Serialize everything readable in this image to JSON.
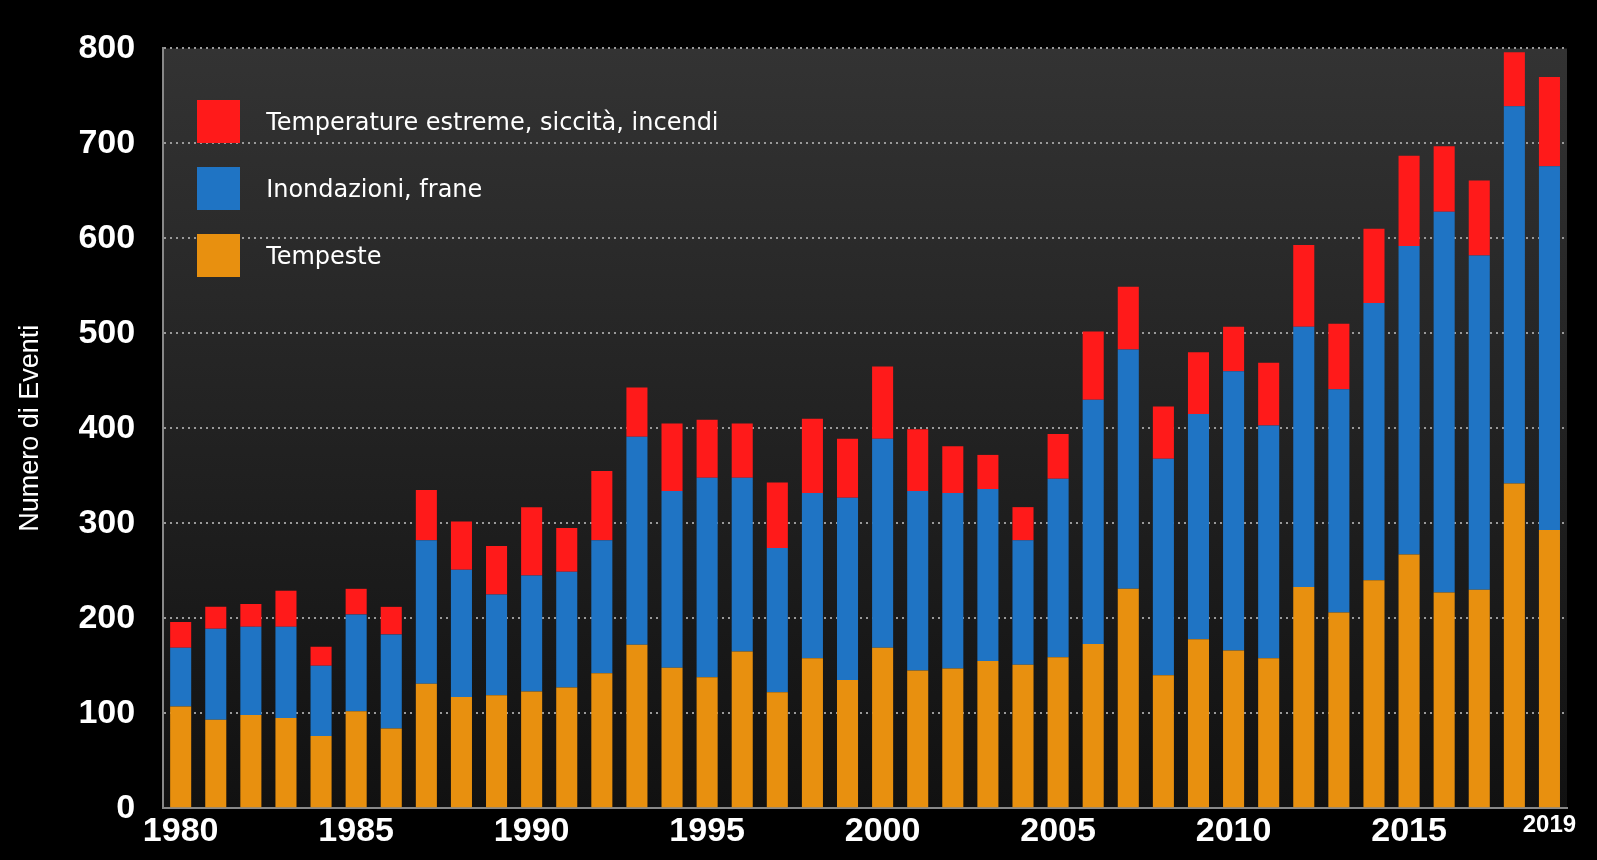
{
  "chart_data": {
    "type": "bar",
    "stacked": true,
    "ylabel": "Numero di Eventi",
    "categories": [
      "1980",
      null,
      null,
      null,
      null,
      "1985",
      null,
      null,
      null,
      null,
      "1990",
      null,
      null,
      null,
      null,
      "1995",
      null,
      null,
      null,
      null,
      "2000",
      null,
      null,
      null,
      null,
      "2005",
      null,
      null,
      null,
      null,
      "2010",
      null,
      null,
      null,
      null,
      "2015",
      null,
      null,
      null,
      "2019"
    ],
    "series": [
      {
        "name": "Tempeste",
        "color": "#e8900f",
        "values": [
          107,
          93,
          98,
          95,
          76,
          102,
          84,
          131,
          117,
          119,
          123,
          127,
          142,
          172,
          148,
          138,
          165,
          122,
          158,
          135,
          169,
          145,
          147,
          155,
          151,
          159,
          173,
          231,
          140,
          178,
          166,
          158,
          233,
          206,
          240,
          267,
          227,
          230,
          342,
          293
        ]
      },
      {
        "name": "Inondazioni, frane",
        "color": "#1f74c4",
        "values": [
          62,
          96,
          93,
          96,
          74,
          102,
          99,
          151,
          134,
          106,
          122,
          122,
          140,
          219,
          186,
          210,
          183,
          152,
          174,
          192,
          220,
          189,
          185,
          181,
          131,
          188,
          257,
          252,
          228,
          237,
          294,
          245,
          274,
          235,
          292,
          325,
          401,
          352,
          397,
          383
        ]
      },
      {
        "name": "Temperature estreme, siccità, incendi",
        "color": "#ff1a1a",
        "values": [
          27,
          23,
          24,
          38,
          20,
          27,
          29,
          53,
          51,
          51,
          72,
          46,
          73,
          52,
          71,
          61,
          57,
          69,
          78,
          62,
          76,
          65,
          49,
          36,
          35,
          47,
          72,
          66,
          55,
          65,
          47,
          66,
          86,
          69,
          78,
          95,
          69,
          79,
          57,
          94
        ]
      }
    ],
    "ylim": [
      0,
      800
    ],
    "yticks": [
      0,
      100,
      200,
      300,
      400,
      500,
      600,
      700,
      800
    ],
    "grid": "y",
    "legend": "top left"
  }
}
